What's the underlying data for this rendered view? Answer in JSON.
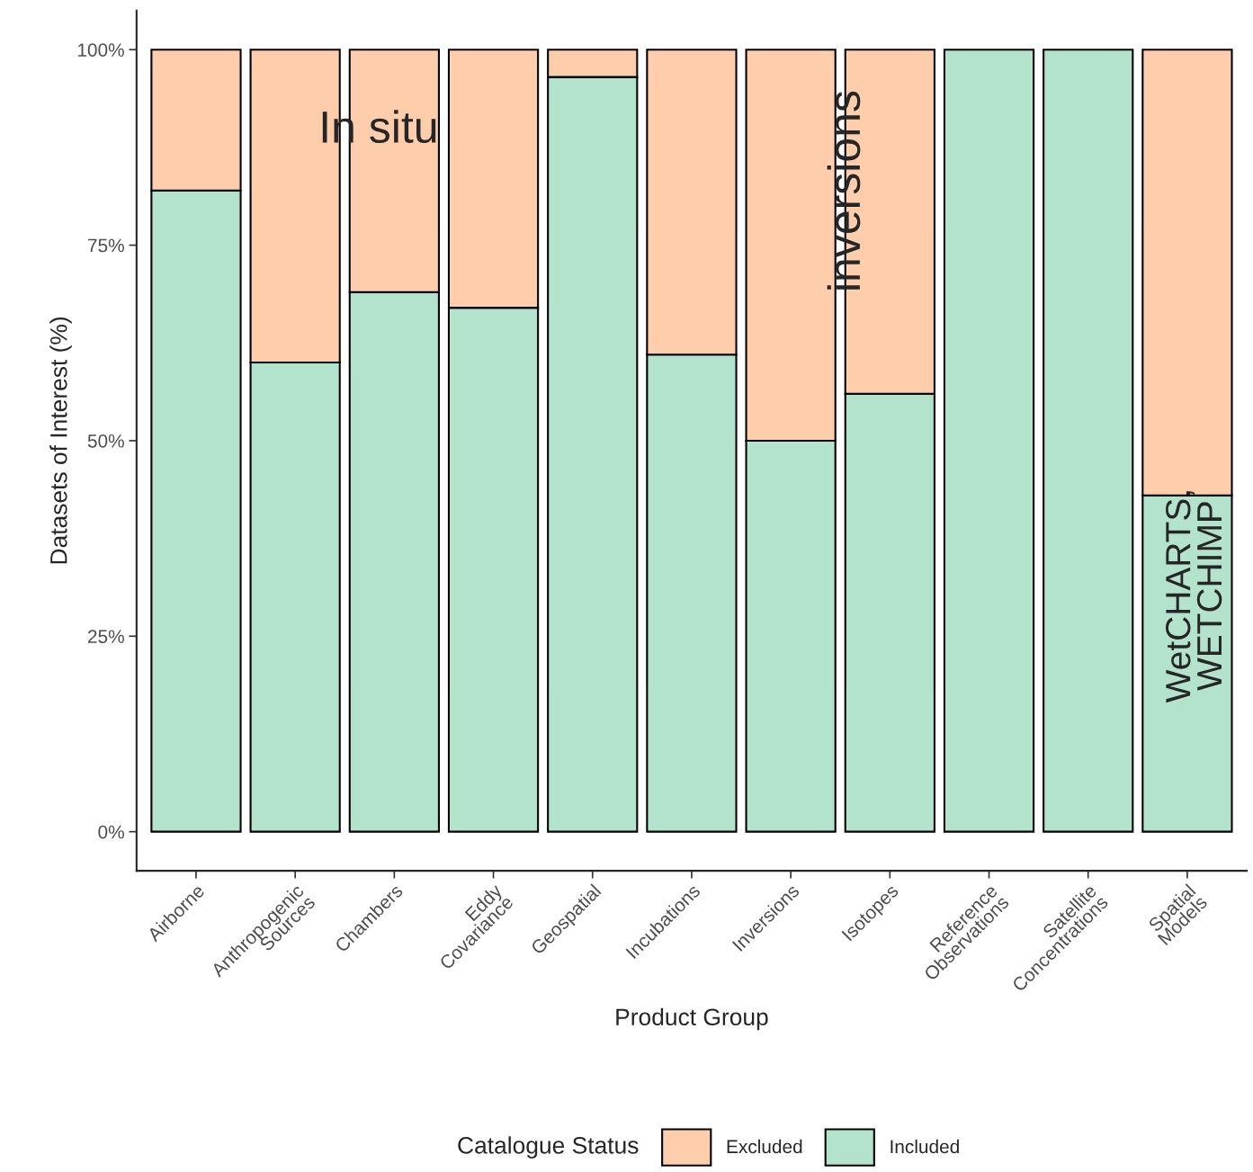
{
  "chart_data": {
    "type": "bar",
    "stacked": true,
    "xlabel": "Product Group",
    "ylabel": "Datasets of Interest (%)",
    "legend_title": "Catalogue Status",
    "legend": "bottom",
    "grid": false,
    "categories": [
      "Airborne",
      "Anthropogenic\nSources",
      "Chambers",
      "Eddy\nCovariance",
      "Geospatial",
      "Incubations",
      "Inversions",
      "Isotopes",
      "Reference\nObservations",
      "Satellite\nConcentrations",
      "Spatial\nModels"
    ],
    "series": [
      {
        "name": "Included",
        "color": "#b3e2cd",
        "values": [
          82,
          60,
          69,
          67,
          96.5,
          61,
          50,
          56,
          100,
          100,
          43
        ]
      },
      {
        "name": "Excluded",
        "color": "#fdcdac",
        "values": [
          18,
          40,
          31,
          33,
          3.5,
          39,
          50,
          44,
          null,
          null,
          57
        ]
      }
    ],
    "ylim": [
      -5,
      105
    ],
    "yticks": [
      {
        "value": 0,
        "label": "0%"
      },
      {
        "value": 25,
        "label": "25%"
      },
      {
        "value": 50,
        "label": "50%"
      },
      {
        "value": 75,
        "label": "75%"
      },
      {
        "value": 100,
        "label": "100%"
      }
    ],
    "annotations": [
      "In situ",
      "inversions",
      "WetCHARTS,\nWETCHIMP"
    ]
  }
}
